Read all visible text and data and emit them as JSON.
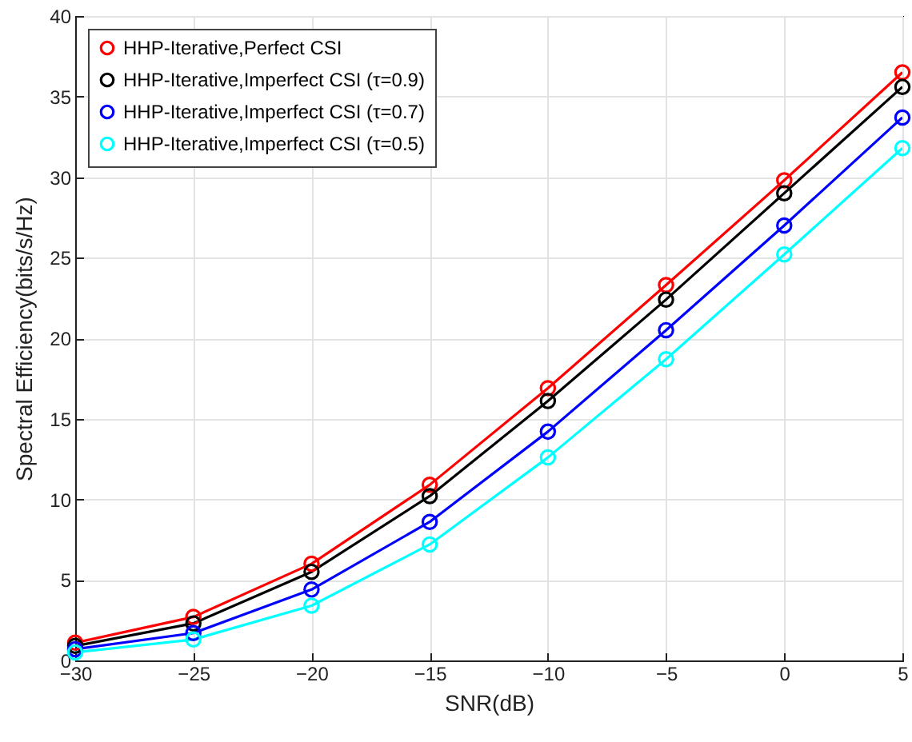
{
  "chart_data": {
    "type": "line",
    "xlabel": "SNR(dB)",
    "ylabel": "Spectral Efficiency(bits/s/Hz)",
    "x": [
      -30,
      -25,
      -20,
      -15,
      -10,
      -5,
      0,
      5
    ],
    "series": [
      {
        "name": "HHP-Iterative,Perfect CSI",
        "color": "#ff0000",
        "values": [
          1.1,
          2.7,
          6.0,
          10.9,
          16.9,
          23.3,
          29.8,
          36.5
        ]
      },
      {
        "name": "HHP-Iterative,Imperfect CSI (τ=0.9)",
        "color": "#000000",
        "values": [
          0.9,
          2.3,
          5.5,
          10.2,
          16.1,
          22.4,
          29.0,
          35.6
        ]
      },
      {
        "name": "HHP-Iterative,Imperfect CSI (τ=0.7)",
        "color": "#0000ff",
        "values": [
          0.7,
          1.7,
          4.4,
          8.6,
          14.2,
          20.5,
          27.0,
          33.7
        ]
      },
      {
        "name": "HHP-Iterative,Imperfect CSI (τ=0.5)",
        "color": "#00ffff",
        "values": [
          0.5,
          1.3,
          3.4,
          7.2,
          12.6,
          18.7,
          25.2,
          31.8
        ]
      }
    ],
    "xlim": [
      -30,
      5
    ],
    "xticks": [
      -30,
      -25,
      -20,
      -15,
      -10,
      -5,
      0,
      5
    ],
    "ylim": [
      0,
      40
    ],
    "yticks": [
      0,
      5,
      10,
      15,
      20,
      25,
      30,
      35,
      40
    ],
    "grid": true,
    "legend": "top left",
    "marker": "circle",
    "line_style": "solid"
  }
}
